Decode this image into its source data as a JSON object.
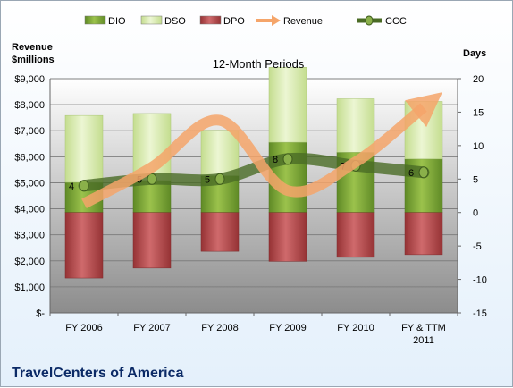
{
  "chart_data": {
    "type": "bar",
    "title": "12-Month Periods",
    "company": "TravelCenters of America",
    "left_axis_title": [
      "Revenue",
      "$millions"
    ],
    "right_axis_title": "Days",
    "left_ylim": [
      0,
      9000
    ],
    "right_ylim": [
      -15,
      20
    ],
    "left_ticks": [
      "$-",
      "$1,000",
      "$2,000",
      "$3,000",
      "$4,000",
      "$5,000",
      "$6,000",
      "$7,000",
      "$8,000",
      "$9,000"
    ],
    "right_ticks": [
      "-15",
      "-10",
      "-5",
      "0",
      "5",
      "10",
      "15",
      "20"
    ],
    "categories": [
      [
        "FY 2006"
      ],
      [
        "FY 2007"
      ],
      [
        "FY 2008"
      ],
      [
        "FY 2009"
      ],
      [
        "FY 2010"
      ],
      [
        "FY & TTM",
        "2011"
      ]
    ],
    "legend": [
      "DIO",
      "DSO",
      "DPO",
      "Revenue",
      "CCC"
    ],
    "series": [
      {
        "name": "DIO",
        "axis": "right",
        "values": [
          4.5,
          4.8,
          5.5,
          10.5,
          9.0,
          8.0
        ]
      },
      {
        "name": "DSO",
        "axis": "right",
        "values": [
          10.0,
          10.0,
          6.8,
          11.2,
          8.0,
          8.6
        ]
      },
      {
        "name": "DPO",
        "axis": "right",
        "values": [
          -9.8,
          -8.3,
          -5.8,
          -7.3,
          -6.7,
          -6.3
        ]
      },
      {
        "name": "Revenue",
        "axis": "left",
        "values": [
          4200,
          5600,
          7400,
          4700,
          5800,
          7900
        ]
      },
      {
        "name": "CCC",
        "axis": "right",
        "values": [
          4,
          5,
          5,
          8,
          7,
          6
        ]
      }
    ],
    "ccc_labels": [
      "4",
      "5",
      "5",
      "8",
      "7",
      "6"
    ],
    "colors": {
      "DIO": "#7ea63a",
      "DSO": "#d2e6a6",
      "DPO": "#b5484b",
      "Revenue": "#f5a56a",
      "CCC": "#4a6b25"
    },
    "grid": true,
    "legend_position": "top"
  }
}
